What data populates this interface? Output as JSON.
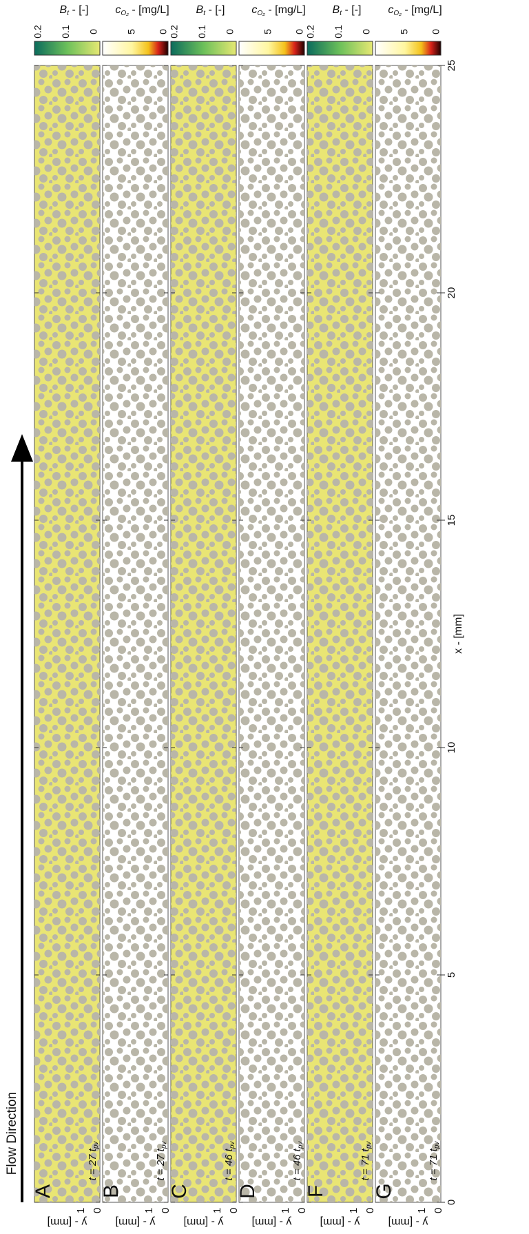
{
  "flow_direction": "Flow Direction",
  "x_axis": {
    "label": "x - [mm]",
    "ticks": [
      "0",
      "5",
      "10",
      "15",
      "20",
      "25"
    ]
  },
  "colorbars": [
    {
      "symbol": "B",
      "sub": "t",
      "unit": " - [-]",
      "ticks": [
        "0.2",
        "0.1",
        "0"
      ]
    },
    {
      "symbol": "c",
      "sub": "O₂",
      "unit": " - [mg/L]",
      "ticks": [
        "5",
        "0"
      ]
    },
    {
      "symbol": "B",
      "sub": "t",
      "unit": " - [-]",
      "ticks": [
        "0.2",
        "0.1",
        "0"
      ]
    },
    {
      "symbol": "c",
      "sub": "O₂",
      "unit": " - [mg/L]",
      "ticks": [
        "5",
        "0"
      ]
    },
    {
      "symbol": "B",
      "sub": "t",
      "unit": " - [-]",
      "ticks": [
        "0.2",
        "0.1",
        "0"
      ]
    },
    {
      "symbol": "c",
      "sub": "O₂",
      "unit": " - [mg/L]",
      "ticks": [
        "5",
        "0"
      ]
    }
  ],
  "panels": [
    {
      "letter": "A",
      "time": "t = 27 ",
      "time_sym": "t",
      "time_sub": "pv",
      "y_label": "y - [mm]",
      "y_ticks": [
        "1",
        "0"
      ]
    },
    {
      "letter": "B",
      "time": "t = 27 ",
      "time_sym": "t",
      "time_sub": "pv",
      "y_label": "y - [mm]",
      "y_ticks": [
        "1",
        "0"
      ]
    },
    {
      "letter": "C",
      "time": "t = 46 ",
      "time_sym": "t",
      "time_sub": "pv",
      "y_label": "y - [mm]",
      "y_ticks": [
        "1",
        "0"
      ]
    },
    {
      "letter": "D",
      "time": "t = 46 ",
      "time_sym": "t",
      "time_sub": "pv",
      "y_label": "y - [mm]",
      "y_ticks": [
        "1",
        "0"
      ]
    },
    {
      "letter": "F",
      "time": "t = 71 ",
      "time_sym": "t",
      "time_sub": "pv",
      "y_label": "y - [mm]",
      "y_ticks": [
        "1",
        "0"
      ]
    },
    {
      "letter": "G",
      "time": "t = 71 ",
      "time_sym": "t",
      "time_sub": "pv",
      "y_label": "y - [mm]",
      "y_ticks": [
        "1",
        "0"
      ]
    }
  ]
}
